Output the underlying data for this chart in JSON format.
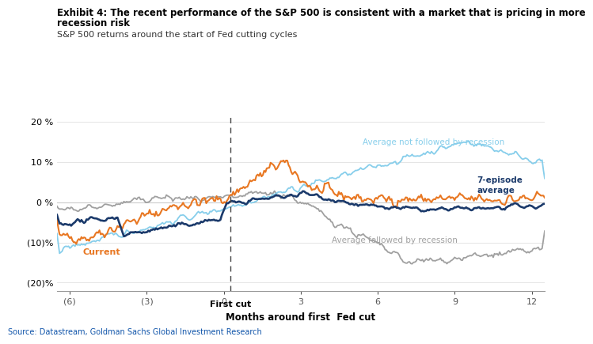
{
  "title_line1": "Exhibit 4: The recent performance of the S&P 500 is consistent with a market that is pricing in more",
  "title_line2": "recession risk",
  "subtitle": "S&P 500 returns around the start of Fed cutting cycles",
  "xlabel": "Months around first  Fed cut",
  "source": "Source: Datastream, Goldman Sachs Global Investment Research",
  "xlim": [
    -6.5,
    12.5
  ],
  "ylim": [
    -22,
    22
  ],
  "yticks": [
    -20,
    -10,
    0,
    10,
    20
  ],
  "ytick_labels": [
    "(20)%",
    "(10)%",
    "0 %",
    "10 %",
    "20 %"
  ],
  "xticks": [
    -6,
    -3,
    0,
    3,
    6,
    9,
    12
  ],
  "xtick_labels": [
    "(6)",
    "(3)",
    "0",
    "3",
    "6",
    "9",
    "12"
  ],
  "vline_x": 0.25,
  "first_cut_label": "First cut",
  "colors": {
    "current": "#E87722",
    "avg_no_recession": "#87CEEB",
    "avg_recession": "#A0A0A0",
    "avg_7episode": "#1B3A6B"
  },
  "background_color": "#FFFFFF",
  "annotation_7ep": "7-episode\naverage",
  "annotation_no_rec": "Average not followed by recession",
  "annotation_rec": "Average followed by recession",
  "annotation_current": "Current"
}
